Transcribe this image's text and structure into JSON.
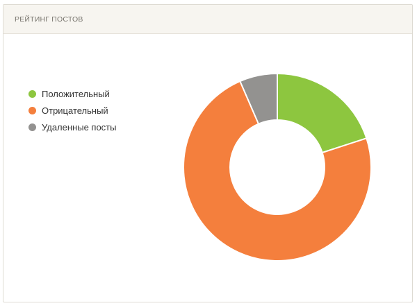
{
  "panel": {
    "title": "РЕЙТИНГ ПОСТОВ"
  },
  "chart_data": {
    "type": "pie",
    "donut": true,
    "title": "",
    "legend_position": "left",
    "series": [
      {
        "name": "Положительный",
        "value": 20,
        "color": "#8dc63f"
      },
      {
        "name": "Отрицательный",
        "value": 73.5,
        "color": "#f47f3d"
      },
      {
        "name": "Удаленные посты",
        "value": 6.5,
        "color": "#939290"
      }
    ]
  }
}
